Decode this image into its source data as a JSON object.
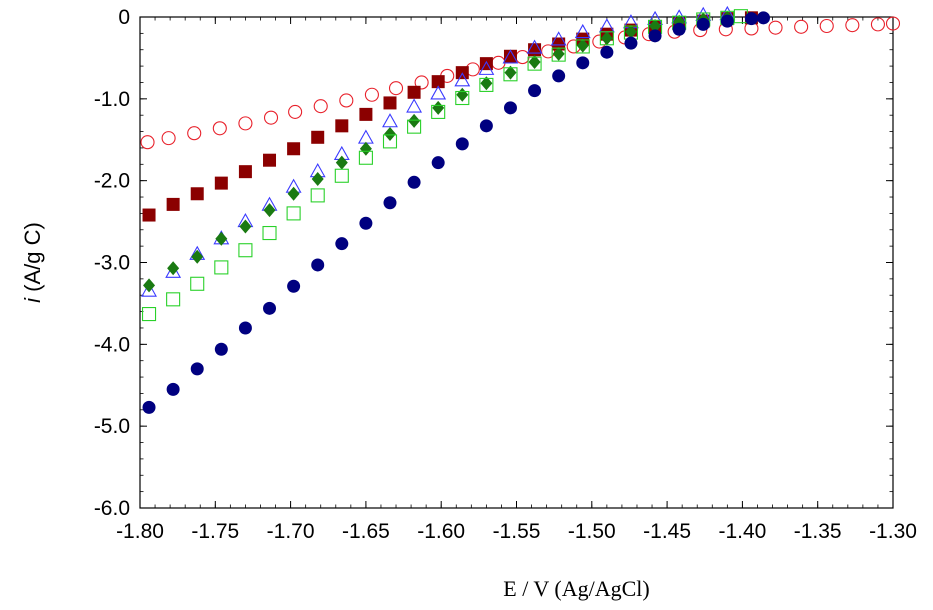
{
  "chart_data": {
    "type": "scatter",
    "title": "",
    "xlabel": "E / V (Ag/AgCl)",
    "ylabel_italic": "i",
    "ylabel_rest": " (A/g C)",
    "xlim": [
      -1.8,
      -1.3
    ],
    "ylim": [
      -6.0,
      0
    ],
    "xticks": [
      -1.8,
      -1.75,
      -1.7,
      -1.65,
      -1.6,
      -1.55,
      -1.5,
      -1.45,
      -1.4,
      -1.35,
      -1.3
    ],
    "xtick_labels": [
      "-1.80",
      "-1.75",
      "-1.70",
      "-1.65",
      "-1.60",
      "-1.55",
      "-1.50",
      "-1.45",
      "-1.40",
      "-1.35",
      "-1.30"
    ],
    "yticks": [
      0,
      -1.0,
      -2.0,
      -3.0,
      -4.0,
      -5.0,
      -6.0
    ],
    "ytick_labels": [
      "0",
      "-1.0",
      "-2.0",
      "-3.0",
      "-4.0",
      "-5.0",
      "-6.0"
    ],
    "grid": false,
    "series": [
      {
        "marker": "circle-open",
        "color": "#e8212b",
        "x": [
          -1.795,
          -1.781,
          -1.764,
          -1.747,
          -1.73,
          -1.713,
          -1.697,
          -1.68,
          -1.663,
          -1.646,
          -1.63,
          -1.613,
          -1.596,
          -1.579,
          -1.562,
          -1.546,
          -1.529,
          -1.512,
          -1.495,
          -1.478,
          -1.462,
          -1.445,
          -1.428,
          -1.411,
          -1.394,
          -1.378,
          -1.361,
          -1.344,
          -1.327,
          -1.31,
          -1.3
        ],
        "y": [
          -1.53,
          -1.48,
          -1.42,
          -1.36,
          -1.3,
          -1.23,
          -1.16,
          -1.09,
          -1.02,
          -0.95,
          -0.87,
          -0.8,
          -0.72,
          -0.64,
          -0.56,
          -0.49,
          -0.42,
          -0.36,
          -0.3,
          -0.25,
          -0.21,
          -0.18,
          -0.16,
          -0.15,
          -0.14,
          -0.13,
          -0.12,
          -0.11,
          -0.1,
          -0.09,
          -0.08
        ]
      },
      {
        "marker": "square-filled",
        "color": "#8b0000",
        "x": [
          -1.794,
          -1.778,
          -1.762,
          -1.746,
          -1.73,
          -1.714,
          -1.698,
          -1.682,
          -1.666,
          -1.65,
          -1.634,
          -1.618,
          -1.602,
          -1.586,
          -1.57,
          -1.554,
          -1.538,
          -1.522,
          -1.506,
          -1.49,
          -1.474,
          -1.458,
          -1.442,
          -1.426,
          -1.41,
          -1.394
        ],
        "y": [
          -2.42,
          -2.29,
          -2.16,
          -2.03,
          -1.89,
          -1.75,
          -1.61,
          -1.47,
          -1.33,
          -1.19,
          -1.05,
          -0.92,
          -0.79,
          -0.68,
          -0.57,
          -0.48,
          -0.4,
          -0.33,
          -0.27,
          -0.21,
          -0.16,
          -0.12,
          -0.08,
          -0.05,
          -0.02,
          -0.01
        ]
      },
      {
        "marker": "triangle-open",
        "color": "#3a3aff",
        "x": [
          -1.794,
          -1.778,
          -1.762,
          -1.746,
          -1.73,
          -1.714,
          -1.698,
          -1.682,
          -1.666,
          -1.65,
          -1.634,
          -1.618,
          -1.602,
          -1.586,
          -1.57,
          -1.554,
          -1.538,
          -1.522,
          -1.506,
          -1.49,
          -1.474,
          -1.458,
          -1.442,
          -1.426,
          -1.41
        ],
        "y": [
          -3.35,
          -3.12,
          -2.9,
          -2.71,
          -2.5,
          -2.3,
          -2.08,
          -1.89,
          -1.68,
          -1.48,
          -1.28,
          -1.1,
          -0.94,
          -0.78,
          -0.64,
          -0.5,
          -0.38,
          -0.28,
          -0.19,
          -0.12,
          -0.07,
          -0.03,
          -0.01,
          0.02,
          0.03
        ]
      },
      {
        "marker": "diamond-filled",
        "color": "#1a7a12",
        "x": [
          -1.794,
          -1.778,
          -1.762,
          -1.746,
          -1.73,
          -1.714,
          -1.698,
          -1.682,
          -1.666,
          -1.65,
          -1.634,
          -1.618,
          -1.602,
          -1.586,
          -1.57,
          -1.554,
          -1.538,
          -1.522,
          -1.506,
          -1.49,
          -1.474,
          -1.458,
          -1.442,
          -1.426,
          -1.41
        ],
        "y": [
          -3.28,
          -3.07,
          -2.93,
          -2.71,
          -2.56,
          -2.36,
          -2.16,
          -1.98,
          -1.78,
          -1.61,
          -1.43,
          -1.27,
          -1.11,
          -0.95,
          -0.81,
          -0.68,
          -0.55,
          -0.45,
          -0.35,
          -0.26,
          -0.18,
          -0.11,
          -0.06,
          -0.03,
          -0.01
        ]
      },
      {
        "marker": "square-open",
        "color": "#2ad12a",
        "x": [
          -1.794,
          -1.778,
          -1.762,
          -1.746,
          -1.73,
          -1.714,
          -1.698,
          -1.682,
          -1.666,
          -1.65,
          -1.634,
          -1.618,
          -1.602,
          -1.586,
          -1.57,
          -1.554,
          -1.538,
          -1.522,
          -1.506,
          -1.49,
          -1.474,
          -1.458,
          -1.442,
          -1.426,
          -1.41,
          -1.401
        ],
        "y": [
          -3.63,
          -3.45,
          -3.26,
          -3.06,
          -2.85,
          -2.64,
          -2.4,
          -2.18,
          -1.94,
          -1.72,
          -1.52,
          -1.34,
          -1.16,
          -0.99,
          -0.83,
          -0.7,
          -0.57,
          -0.46,
          -0.36,
          -0.26,
          -0.19,
          -0.12,
          -0.07,
          -0.03,
          -0.01,
          0.01
        ]
      },
      {
        "marker": "circle-filled",
        "color": "#000080",
        "x": [
          -1.794,
          -1.778,
          -1.762,
          -1.746,
          -1.73,
          -1.714,
          -1.698,
          -1.682,
          -1.666,
          -1.65,
          -1.634,
          -1.618,
          -1.602,
          -1.586,
          -1.57,
          -1.554,
          -1.538,
          -1.522,
          -1.506,
          -1.49,
          -1.474,
          -1.458,
          -1.442,
          -1.426,
          -1.41,
          -1.394,
          -1.386
        ],
        "y": [
          -4.77,
          -4.55,
          -4.3,
          -4.06,
          -3.8,
          -3.56,
          -3.29,
          -3.03,
          -2.77,
          -2.52,
          -2.27,
          -2.02,
          -1.78,
          -1.55,
          -1.33,
          -1.11,
          -0.9,
          -0.72,
          -0.56,
          -0.43,
          -0.32,
          -0.23,
          -0.15,
          -0.09,
          -0.05,
          -0.02,
          -0.01
        ]
      }
    ]
  }
}
